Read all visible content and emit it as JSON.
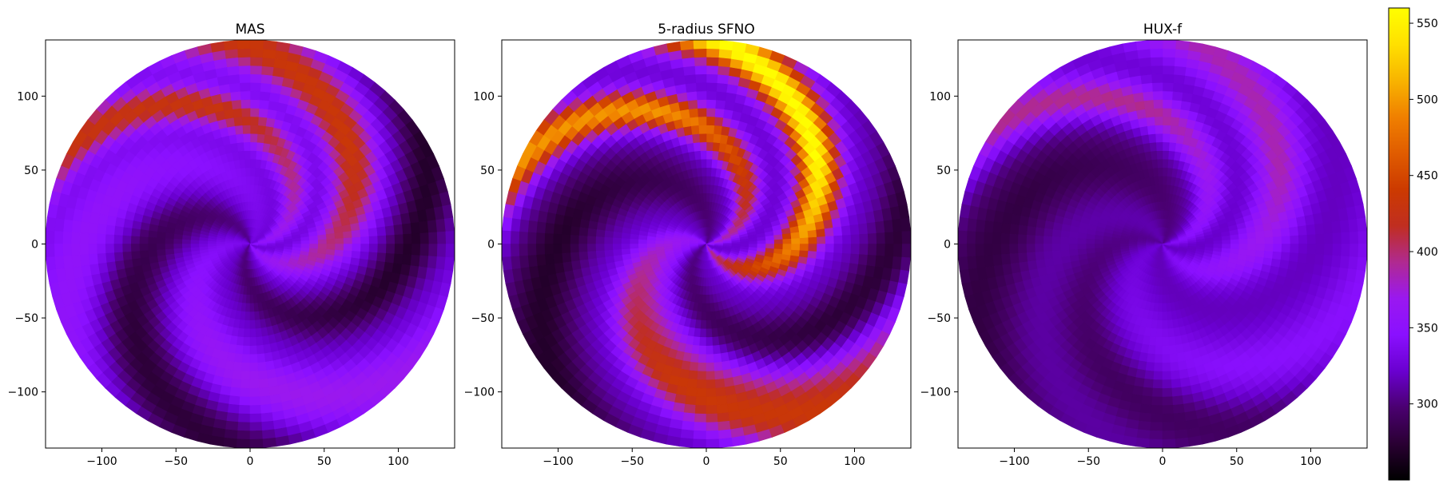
{
  "chart_data": [
    {
      "type": "heatmap",
      "title": "MAS",
      "xlim": [
        -138,
        138
      ],
      "ylim": [
        -138,
        138
      ],
      "xticks": [
        -100,
        -50,
        0,
        50,
        100
      ],
      "yticks": [
        -100,
        -50,
        0,
        50,
        100
      ],
      "xtick_labels": [
        "−100",
        "−50",
        "0",
        "50",
        "100"
      ],
      "ytick_labels": [
        "−100",
        "−50",
        "0",
        "50",
        "100"
      ],
      "domain_radius": 138,
      "background_value": 320,
      "spiral_twist_deg_per_unit": 1.1,
      "streams": [
        {
          "base_angle_deg": 0,
          "peak_value": 430,
          "width_deg": 22
        },
        {
          "base_angle_deg": 302,
          "peak_value": 435,
          "width_deg": 30
        },
        {
          "base_angle_deg": 170,
          "peak_value": 370,
          "width_deg": 35
        },
        {
          "base_angle_deg": 55,
          "peak_value": 355,
          "width_deg": 40
        }
      ],
      "troughs": [
        {
          "base_angle_deg": 240,
          "depth": 50,
          "width_deg": 28
        },
        {
          "base_angle_deg": 110,
          "depth": 45,
          "width_deg": 35
        }
      ]
    },
    {
      "type": "heatmap",
      "title": "5-radius SFNO",
      "xlim": [
        -138,
        138
      ],
      "ylim": [
        -138,
        138
      ],
      "xticks": [
        -100,
        -50,
        0,
        50,
        100
      ],
      "yticks": [
        -100,
        -50,
        0,
        50,
        100
      ],
      "xtick_labels": [
        "−100",
        "−50",
        "0",
        "50",
        "100"
      ],
      "ytick_labels": [
        "−100",
        "−50",
        "0",
        "50",
        "100"
      ],
      "domain_radius": 138,
      "background_value": 320,
      "spiral_twist_deg_per_unit": 1.1,
      "streams": [
        {
          "base_angle_deg": 5,
          "peak_value": 500,
          "width_deg": 22
        },
        {
          "base_angle_deg": 295,
          "peak_value": 560,
          "width_deg": 26
        },
        {
          "base_angle_deg": 150,
          "peak_value": 415,
          "width_deg": 28
        },
        {
          "base_angle_deg": 175,
          "peak_value": 385,
          "width_deg": 30
        }
      ],
      "troughs": [
        {
          "base_angle_deg": 70,
          "depth": 50,
          "width_deg": 40
        },
        {
          "base_angle_deg": 220,
          "depth": 45,
          "width_deg": 30
        }
      ]
    },
    {
      "type": "heatmap",
      "title": "HUX-f",
      "xlim": [
        -138,
        138
      ],
      "ylim": [
        -138,
        138
      ],
      "xticks": [
        -100,
        -50,
        0,
        50,
        100
      ],
      "yticks": [
        -100,
        -50,
        0,
        50,
        100
      ],
      "xtick_labels": [
        "−100",
        "−50",
        "0",
        "50",
        "100"
      ],
      "ytick_labels": [
        "−100",
        "−50",
        "0",
        "50",
        "100"
      ],
      "domain_radius": 138,
      "background_value": 315,
      "spiral_twist_deg_per_unit": 1.05,
      "streams": [
        {
          "base_angle_deg": 0,
          "peak_value": 395,
          "width_deg": 24
        },
        {
          "base_angle_deg": 295,
          "peak_value": 385,
          "width_deg": 32
        },
        {
          "base_angle_deg": 200,
          "peak_value": 345,
          "width_deg": 40
        }
      ],
      "troughs": [
        {
          "base_angle_deg": 60,
          "depth": 35,
          "width_deg": 45
        },
        {
          "base_angle_deg": 150,
          "depth": 25,
          "width_deg": 35
        }
      ]
    }
  ],
  "colorbar": {
    "min": 250,
    "max": 560,
    "ticks": [
      300,
      350,
      400,
      450,
      500,
      550
    ],
    "tick_labels": [
      "300",
      "350",
      "400",
      "450",
      "500",
      "550"
    ],
    "colormap": "gnuplot",
    "colors": [
      "#000000",
      "#2a0033",
      "#4a0070",
      "#6a00d0",
      "#8a10ff",
      "#9a18f0",
      "#b02a90",
      "#c02e20",
      "#cc3a00",
      "#e05c00",
      "#f08000",
      "#f8b400",
      "#ffe000",
      "#ffff00"
    ]
  }
}
